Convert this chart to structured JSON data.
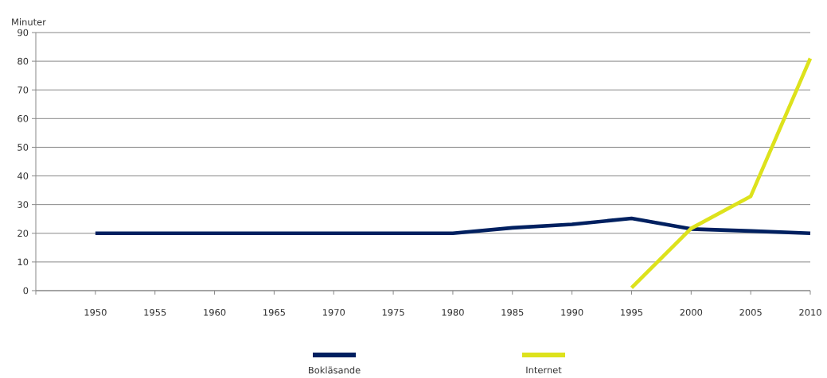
{
  "chart_data": {
    "type": "line",
    "ylabel": "Minuter",
    "x": [
      1950,
      1955,
      1960,
      1965,
      1970,
      1975,
      1980,
      1985,
      1990,
      1995,
      2000,
      2005,
      2010
    ],
    "series": [
      {
        "name": "Bokläsande",
        "color": "#002060",
        "values": [
          20,
          20,
          20,
          20,
          20,
          20,
          20,
          21.9,
          23.1,
          25.2,
          21.5,
          20.8,
          20
        ]
      },
      {
        "name": "Internet",
        "color": "#dde21c",
        "values": [
          null,
          null,
          null,
          null,
          null,
          null,
          null,
          null,
          null,
          1,
          21.7,
          32.9,
          81
        ]
      }
    ],
    "xlim": [
      1945,
      2010
    ],
    "xticks": [
      {
        "value": 1945,
        "label": null
      },
      1950,
      1955,
      1960,
      1965,
      1970,
      1975,
      1980,
      1985,
      1990,
      1995,
      2000,
      2005,
      2010
    ],
    "ylim": [
      0,
      90
    ],
    "yticks": [
      0,
      10,
      20,
      30,
      40,
      50,
      60,
      70,
      80,
      90
    ],
    "grid": "y",
    "legend": "bottom",
    "marker": "none",
    "line_style": "solid"
  }
}
